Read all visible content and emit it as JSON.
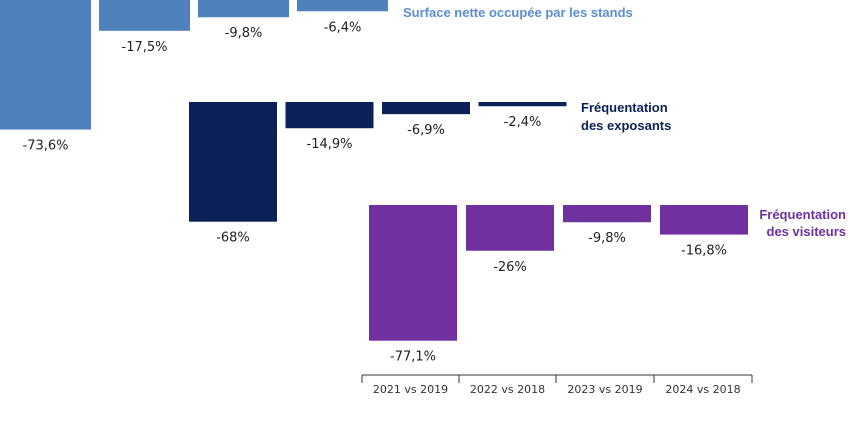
{
  "chart_data": {
    "type": "bar",
    "title": "",
    "xlabel": "",
    "ylabel": "",
    "grid": false,
    "categories": [
      "2021 vs 2019",
      "2022 vs 2018",
      "2023 vs 2019",
      "2024 vs 2018"
    ],
    "series": [
      {
        "name": "Surface nette occupée par les stands",
        "color": "#4f81bd",
        "values": [
          -73.6,
          -17.5,
          -9.8,
          -6.4
        ],
        "labels": [
          "-73,6%",
          "-17,5%",
          "-9,8%",
          "-6,4%"
        ]
      },
      {
        "name": "Fréquentation des exposants",
        "name_lines": [
          "Fréquentation",
          "des exposants"
        ],
        "color": "#0b2158",
        "values": [
          -68,
          -14.9,
          -6.9,
          -2.4
        ],
        "labels": [
          "-68%",
          "-14,9%",
          "-6,9%",
          "-2,4%"
        ]
      },
      {
        "name": "Fréquentation des visiteurs",
        "name_lines": [
          "Fréquentation",
          "des visiteurs"
        ],
        "color": "#7030a0",
        "values": [
          -77.1,
          -26,
          -9.8,
          -16.8
        ],
        "labels": [
          "-77,1%",
          "-26%",
          "-9,8%",
          "-16,8%"
        ]
      }
    ]
  }
}
